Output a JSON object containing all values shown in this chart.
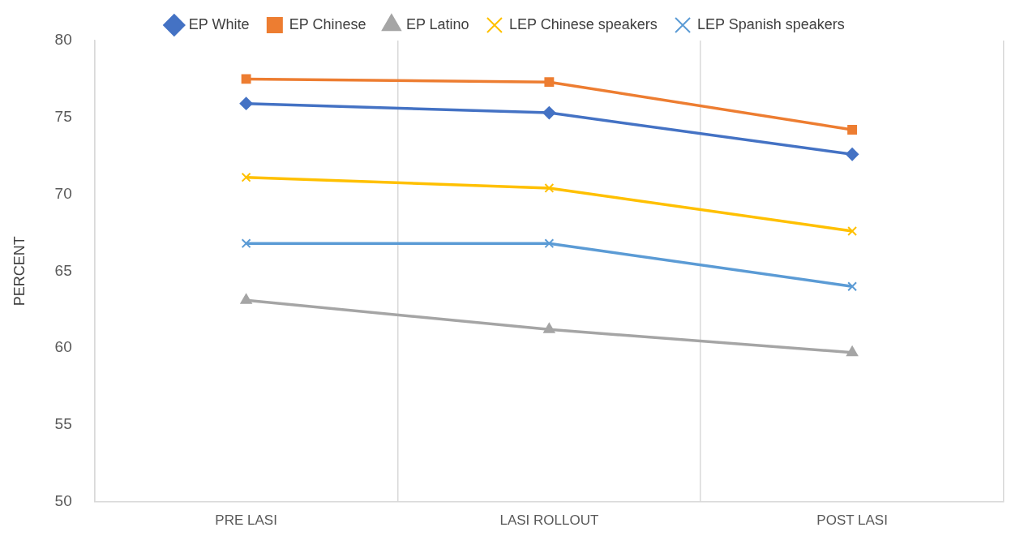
{
  "chart_data": {
    "type": "line",
    "ylabel": "PERCENT",
    "categories": [
      "PRE LASI",
      "LASI ROLLOUT",
      "POST LASI"
    ],
    "series": [
      {
        "name": "EP White",
        "color": "#4472c4",
        "marker": "diamond",
        "values": [
          75.9,
          75.3,
          72.6
        ]
      },
      {
        "name": "EP Chinese",
        "color": "#ed7d31",
        "marker": "square",
        "values": [
          77.5,
          77.3,
          74.2
        ]
      },
      {
        "name": "EP Latino",
        "color": "#a5a5a5",
        "marker": "triangle",
        "values": [
          63.1,
          61.2,
          59.7
        ]
      },
      {
        "name": "LEP Chinese speakers",
        "color": "#ffc000",
        "marker": "cross",
        "values": [
          71.1,
          70.4,
          67.6
        ]
      },
      {
        "name": "LEP Spanish speakers",
        "color": "#5b9bd5",
        "marker": "cross",
        "values": [
          66.8,
          66.8,
          64.0
        ]
      }
    ],
    "ylim": [
      50,
      80
    ],
    "yticks": [
      50,
      55,
      60,
      65,
      70,
      75,
      80
    ],
    "grid": "x",
    "legend": "top",
    "line_style": "solid"
  }
}
